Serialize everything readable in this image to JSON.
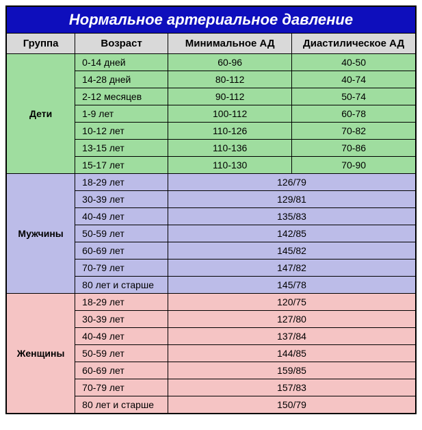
{
  "title": "Нормальное артериальное давление",
  "headers": {
    "group": "Группа",
    "age": "Возраст",
    "min": "Минимальное АД",
    "dia": "Диастилическое АД"
  },
  "colors": {
    "title_bg": "#0e0ebc",
    "title_text": "#ffffff",
    "header_bg": "#d9d9d9",
    "children_bg": "#9fdd9f",
    "men_bg": "#bcbce8",
    "women_bg": "#f5c4c4",
    "border": "#000000"
  },
  "fonts": {
    "title_size": 22,
    "header_size": 15,
    "cell_size": 14,
    "group_size": 15
  },
  "groups": [
    {
      "name": "Дети",
      "bg_color": "#9fdd9f",
      "merged_values": false,
      "rows": [
        {
          "age": "0-14 дней",
          "min": "60-96",
          "dia": "40-50"
        },
        {
          "age": "14-28 дней",
          "min": "80-112",
          "dia": "40-74"
        },
        {
          "age": "2-12 месяцев",
          "min": "90-112",
          "dia": "50-74"
        },
        {
          "age": "1-9 лет",
          "min": "100-112",
          "dia": "60-78"
        },
        {
          "age": "10-12 лет",
          "min": "110-126",
          "dia": "70-82"
        },
        {
          "age": "13-15 лет",
          "min": "110-136",
          "dia": "70-86"
        },
        {
          "age": "15-17 лет",
          "min": "110-130",
          "dia": "70-90"
        }
      ]
    },
    {
      "name": "Мужчины",
      "bg_color": "#bcbce8",
      "merged_values": true,
      "rows": [
        {
          "age": "18-29 лет",
          "value": "126/79"
        },
        {
          "age": "30-39 лет",
          "value": "129/81"
        },
        {
          "age": "40-49 лет",
          "value": "135/83"
        },
        {
          "age": "50-59 лет",
          "value": "142/85"
        },
        {
          "age": "60-69 лет",
          "value": "145/82"
        },
        {
          "age": "70-79 лет",
          "value": "147/82"
        },
        {
          "age": "80 лет и старше",
          "value": "145/78"
        }
      ]
    },
    {
      "name": "Женщины",
      "bg_color": "#f5c4c4",
      "merged_values": true,
      "rows": [
        {
          "age": "18-29 лет",
          "value": "120/75"
        },
        {
          "age": "30-39 лет",
          "value": "127/80"
        },
        {
          "age": "40-49 лет",
          "value": "137/84"
        },
        {
          "age": "50-59 лет",
          "value": "144/85"
        },
        {
          "age": "60-69 лет",
          "value": "159/85"
        },
        {
          "age": "70-79 лет",
          "value": "157/83"
        },
        {
          "age": "80 лет и старше",
          "value": "150/79"
        }
      ]
    }
  ]
}
